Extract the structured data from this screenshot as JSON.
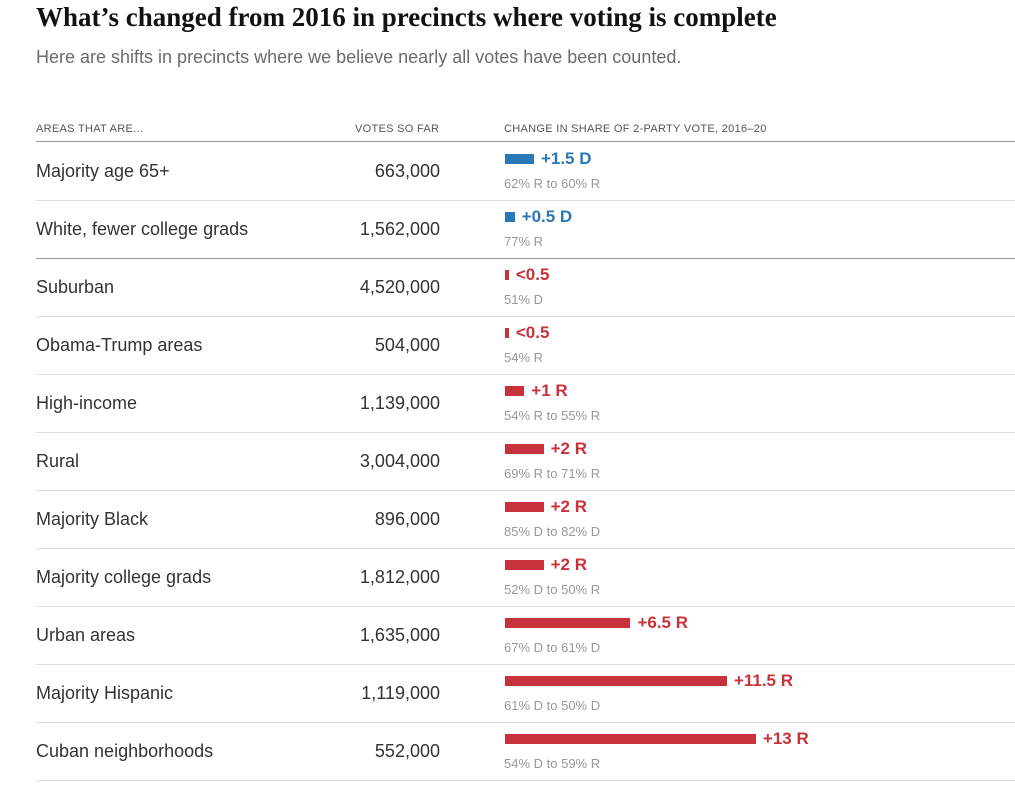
{
  "header": {
    "title": "What’s changed from 2016 in precincts where voting is complete",
    "subtitle": "Here are shifts in precincts where we believe nearly all votes have been counted."
  },
  "table": {
    "columns": [
      "AREAS THAT ARE...",
      "VOTES SO FAR",
      "CHANGE IN SHARE OF 2-PARTY VOTE, 2016–20"
    ],
    "colors": {
      "D": "#2a78b8",
      "R": "#c8323a"
    },
    "rows": [
      {
        "area": "Majority age 65+",
        "votes": "663,000",
        "shift": {
          "value": 1.5,
          "label": "+1.5 D",
          "party": "D"
        },
        "detail": "62% R to 60% R"
      },
      {
        "area": "White, fewer college grads",
        "votes": "1,562,000",
        "shift": {
          "value": 0.5,
          "label": "+0.5 D",
          "party": "D"
        },
        "detail": "77% R"
      },
      {
        "area": "Suburban",
        "votes": "4,520,000",
        "shift": {
          "value": 0.2,
          "label": "<0.5",
          "party": "R"
        },
        "detail": "51% D"
      },
      {
        "area": "Obama-Trump areas",
        "votes": "504,000",
        "shift": {
          "value": 0.2,
          "label": "<0.5",
          "party": "R"
        },
        "detail": "54% R"
      },
      {
        "area": "High-income",
        "votes": "1,139,000",
        "shift": {
          "value": 1,
          "label": "+1 R",
          "party": "R"
        },
        "detail": "54% R to 55% R"
      },
      {
        "area": "Rural",
        "votes": "3,004,000",
        "shift": {
          "value": 2,
          "label": "+2 R",
          "party": "R"
        },
        "detail": "69% R to 71% R"
      },
      {
        "area": "Majority Black",
        "votes": "896,000",
        "shift": {
          "value": 2,
          "label": "+2 R",
          "party": "R"
        },
        "detail": "85% D to 82% D"
      },
      {
        "area": "Majority college grads",
        "votes": "1,812,000",
        "shift": {
          "value": 2,
          "label": "+2 R",
          "party": "R"
        },
        "detail": "52% D to 50% R"
      },
      {
        "area": "Urban areas",
        "votes": "1,635,000",
        "shift": {
          "value": 6.5,
          "label": "+6.5 R",
          "party": "R"
        },
        "detail": "67% D to 61% D"
      },
      {
        "area": "Majority Hispanic",
        "votes": "1,119,000",
        "shift": {
          "value": 11.5,
          "label": "+11.5 R",
          "party": "R"
        },
        "detail": "61% D to 50% D"
      },
      {
        "area": "Cuban neighborhoods",
        "votes": "552,000",
        "shift": {
          "value": 13,
          "label": "+13 R",
          "party": "R"
        },
        "detail": "54% D to 59% R"
      }
    ]
  }
}
